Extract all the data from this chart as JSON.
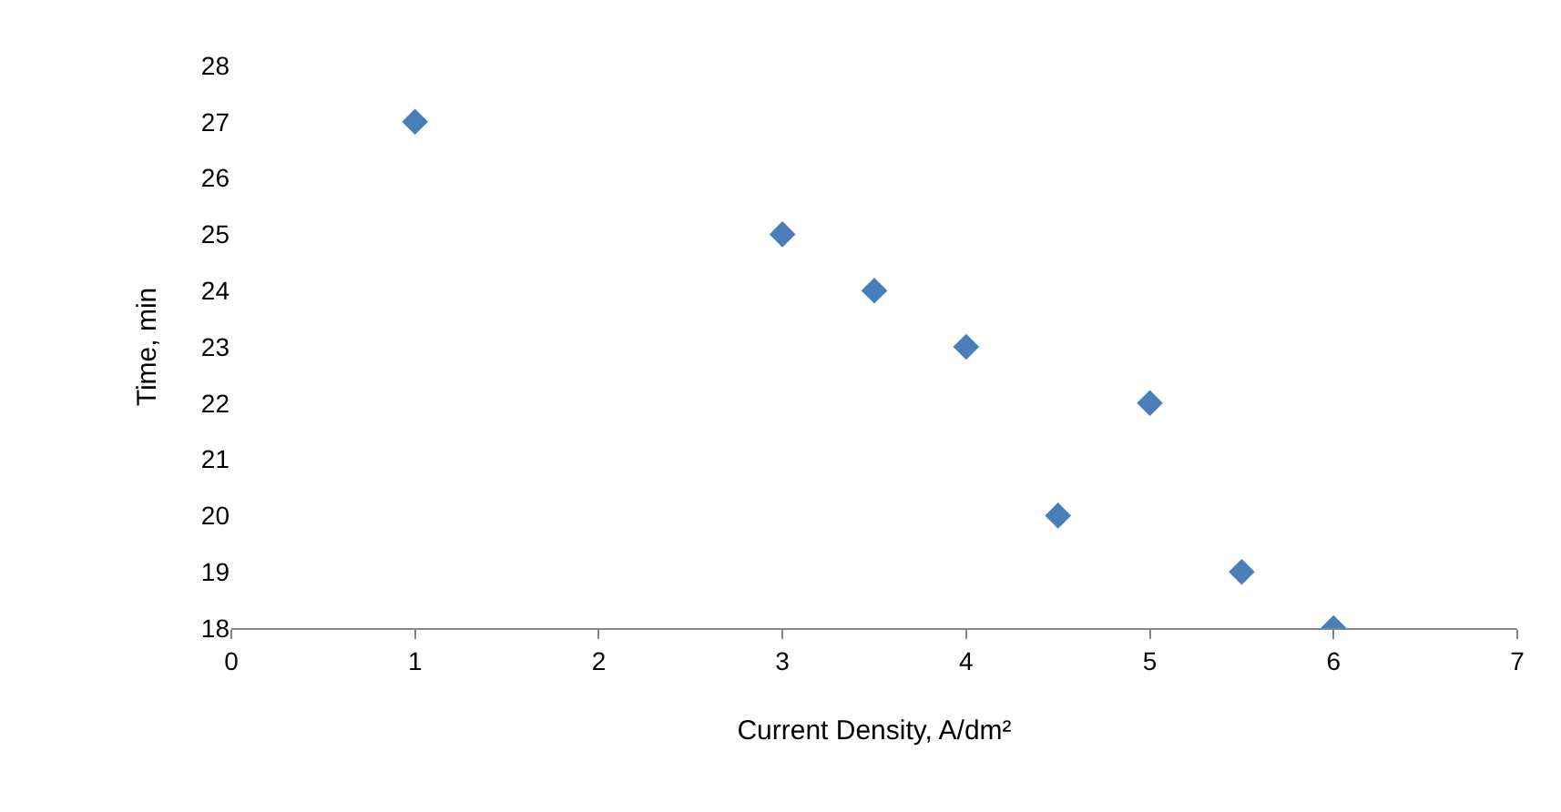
{
  "chart_data": {
    "type": "scatter",
    "xlabel": "Current Density, A/dm²",
    "ylabel": "Time, min",
    "x": [
      1,
      3,
      3.5,
      4,
      4.5,
      5,
      5.5,
      6
    ],
    "values": [
      27,
      25,
      24,
      23,
      20,
      22,
      19,
      18
    ],
    "color": "#4a7ebb",
    "marker": "diamond",
    "xlim": [
      0,
      7
    ],
    "xticks": [
      0,
      1,
      2,
      3,
      4,
      5,
      6,
      7
    ],
    "ylim": [
      18,
      28
    ],
    "yticks": [
      18,
      19,
      20,
      21,
      22,
      23,
      24,
      25,
      26,
      27,
      28
    ],
    "grid": false,
    "legend": false
  }
}
